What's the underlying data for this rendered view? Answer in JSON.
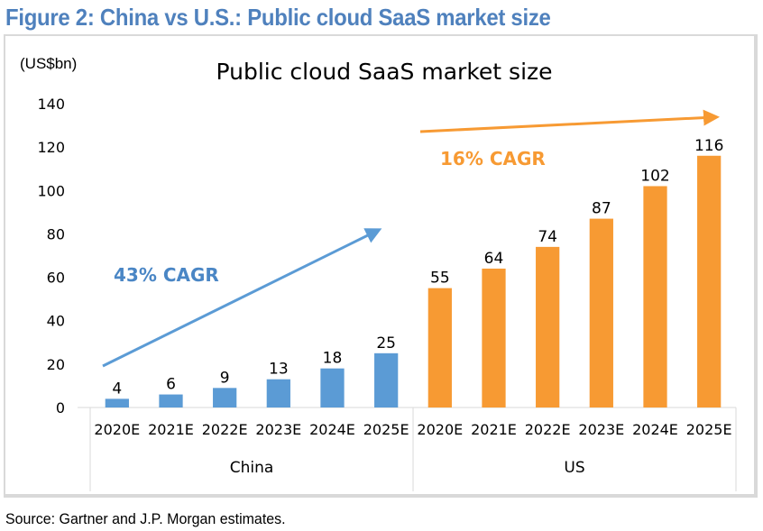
{
  "figure_title": "Figure 2: China vs U.S.: Public cloud SaaS market size",
  "source": "Source: Gartner and J.P. Morgan estimates.",
  "chart_data": {
    "type": "bar",
    "title": "Public cloud SaaS market size",
    "ylabel": "(US$bn)",
    "xlabel": "",
    "ylim": [
      0,
      140
    ],
    "yticks": [
      0,
      20,
      40,
      60,
      80,
      100,
      120,
      140
    ],
    "grid": false,
    "groups": [
      {
        "name": "China",
        "color": "#5b9bd5",
        "categories": [
          "2020E",
          "2021E",
          "2022E",
          "2023E",
          "2024E",
          "2025E"
        ],
        "values": [
          4,
          6,
          9,
          13,
          18,
          25
        ],
        "annotation": {
          "text": "43% CAGR",
          "color": "#4a86c5"
        }
      },
      {
        "name": "US",
        "color": "#f79a33",
        "categories": [
          "2020E",
          "2021E",
          "2022E",
          "2023E",
          "2024E",
          "2025E"
        ],
        "values": [
          55,
          64,
          74,
          87,
          102,
          116
        ],
        "annotation": {
          "text": "16% CAGR",
          "color": "#f79a33"
        }
      }
    ]
  }
}
